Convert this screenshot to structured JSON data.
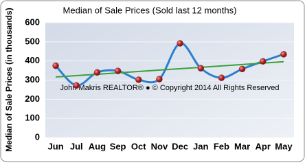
{
  "chart_data": {
    "type": "line",
    "title": "Median of Sale Prices (Sold last 12 months)",
    "y_label": "Median of Sale Prices (in thousands)",
    "annotation": "John Makris REALTOR® ● © Copyright 2014 All Rights Reserved",
    "categories": [
      "Jun",
      "Jul",
      "Aug",
      "Sep",
      "Oct",
      "Nov",
      "Dec",
      "Jan",
      "Feb",
      "Mar",
      "Apr",
      "May"
    ],
    "values": [
      375,
      272,
      340,
      348,
      302,
      305,
      492,
      362,
      312,
      358,
      398,
      435
    ],
    "color": "#2a7fd4",
    "marker_color": "#b02828",
    "trend": {
      "values": [
        316,
        396
      ],
      "color": "#3aa03a"
    },
    "ylim": [
      0,
      600
    ],
    "yticks": [
      0,
      100,
      200,
      300,
      400,
      500,
      600
    ],
    "grid": true
  }
}
